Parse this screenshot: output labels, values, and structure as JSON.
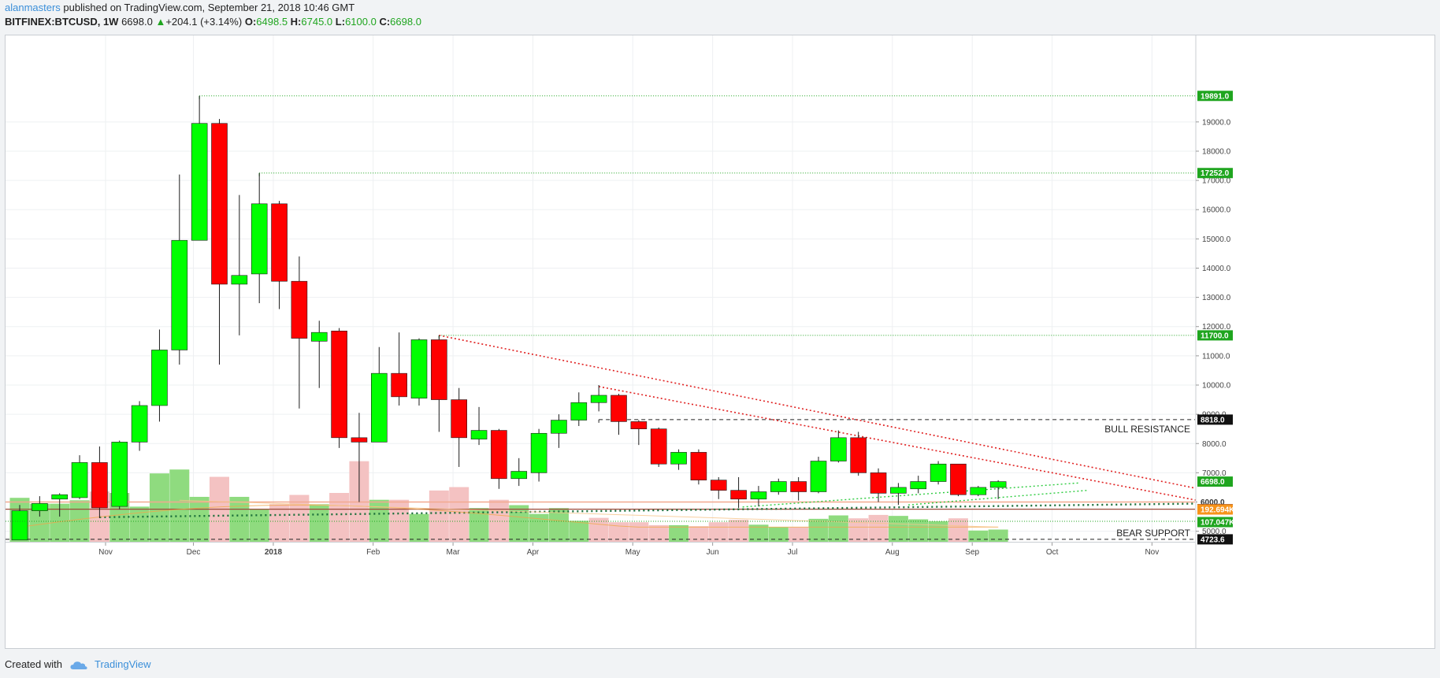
{
  "header": {
    "author": "alanmasters",
    "published_text": " published on TradingView.com, September 21, 2018 10:46 GMT",
    "symbol": "BITFINEX:BTCUSD, 1W",
    "last": "6698.0",
    "arrow": "▲",
    "change": "+204.1 (+3.14%)",
    "o_label": "O:",
    "o_value": "6498.5",
    "h_label": "H:",
    "h_value": "6745.0",
    "l_label": "L:",
    "l_value": "6100.0",
    "c_label": "C:",
    "c_value": "6698.0"
  },
  "footer": {
    "created_with": "Created with",
    "brand": "TradingView"
  },
  "colors": {
    "up": "#00ff00",
    "down": "#ff0000",
    "vol_up": "#8fdb7f",
    "vol_down": "#f4c2c2",
    "level_green": "#1fa51f",
    "trend_red": "#e02020",
    "support_dark": "#1a6e3a",
    "ma_orange": "#f0a64b",
    "axis_text": "#444444"
  },
  "chart_data": {
    "type": "candlestick",
    "symbol": "BITFINEX:BTCUSD",
    "timeframe": "1W",
    "ylim": [
      4100,
      20500
    ],
    "y_ticks": [
      5000,
      6000,
      7000,
      8000,
      9000,
      10000,
      11000,
      12000,
      13000,
      14000,
      15000,
      16000,
      17000,
      18000,
      19000
    ],
    "y_tick_labels": [
      "5000.0",
      "6000.0",
      "7000.0",
      "8000.0",
      "9000.0",
      "10000.0",
      "11000.0",
      "12000.0",
      "13000.0",
      "14000.0",
      "15000.0",
      "16000.0",
      "17000.0",
      "18000.0",
      "19000.0"
    ],
    "x_labels": [
      {
        "label": "Nov",
        "week": 4.3
      },
      {
        "label": "Dec",
        "week": 8.7
      },
      {
        "label": "2018",
        "week": 12.7
      },
      {
        "label": "Feb",
        "week": 17.7
      },
      {
        "label": "Mar",
        "week": 21.7
      },
      {
        "label": "Apr",
        "week": 25.7
      },
      {
        "label": "May",
        "week": 30.7
      },
      {
        "label": "Jun",
        "week": 34.7
      },
      {
        "label": "Jul",
        "week": 38.7
      },
      {
        "label": "Aug",
        "week": 43.7
      },
      {
        "label": "Sep",
        "week": 47.7
      },
      {
        "label": "Oct",
        "week": 51.7
      },
      {
        "label": "Nov",
        "week": 56.7
      }
    ],
    "candles": [
      {
        "o": 4700,
        "h": 5900,
        "l": 4700,
        "c": 5700
      },
      {
        "o": 5700,
        "h": 6200,
        "l": 5500,
        "c": 5950
      },
      {
        "o": 6100,
        "h": 6300,
        "l": 5500,
        "c": 6250
      },
      {
        "o": 6150,
        "h": 7600,
        "l": 6100,
        "c": 7350
      },
      {
        "o": 7350,
        "h": 7900,
        "l": 5450,
        "c": 5800
      },
      {
        "o": 5850,
        "h": 8100,
        "l": 5750,
        "c": 8050
      },
      {
        "o": 8050,
        "h": 9450,
        "l": 7750,
        "c": 9300
      },
      {
        "o": 9300,
        "h": 11900,
        "l": 8750,
        "c": 11200
      },
      {
        "o": 11200,
        "h": 17200,
        "l": 10700,
        "c": 14950
      },
      {
        "o": 14950,
        "h": 19891,
        "l": 14950,
        "c": 18950
      },
      {
        "o": 18950,
        "h": 19100,
        "l": 10700,
        "c": 13450
      },
      {
        "o": 13450,
        "h": 16500,
        "l": 11700,
        "c": 13750
      },
      {
        "o": 13800,
        "h": 17252,
        "l": 12800,
        "c": 16200
      },
      {
        "o": 16200,
        "h": 16300,
        "l": 12600,
        "c": 13550
      },
      {
        "o": 13550,
        "h": 14400,
        "l": 9200,
        "c": 11600
      },
      {
        "o": 11500,
        "h": 12200,
        "l": 9900,
        "c": 11800
      },
      {
        "o": 11850,
        "h": 11950,
        "l": 7850,
        "c": 8200
      },
      {
        "o": 8200,
        "h": 9050,
        "l": 6000,
        "c": 8050
      },
      {
        "o": 8050,
        "h": 11300,
        "l": 8050,
        "c": 10400
      },
      {
        "o": 10400,
        "h": 11800,
        "l": 9300,
        "c": 9600
      },
      {
        "o": 9550,
        "h": 11600,
        "l": 9300,
        "c": 11550
      },
      {
        "o": 11550,
        "h": 11700,
        "l": 8400,
        "c": 9500
      },
      {
        "o": 9500,
        "h": 9900,
        "l": 7200,
        "c": 8200
      },
      {
        "o": 8150,
        "h": 9250,
        "l": 7950,
        "c": 8450
      },
      {
        "o": 8450,
        "h": 8500,
        "l": 6450,
        "c": 6800
      },
      {
        "o": 6800,
        "h": 7500,
        "l": 6550,
        "c": 7050
      },
      {
        "o": 7000,
        "h": 8500,
        "l": 6700,
        "c": 8350
      },
      {
        "o": 8350,
        "h": 9000,
        "l": 7850,
        "c": 8800
      },
      {
        "o": 8800,
        "h": 9750,
        "l": 8600,
        "c": 9400
      },
      {
        "o": 9400,
        "h": 10000,
        "l": 9100,
        "c": 9650
      },
      {
        "o": 9650,
        "h": 9700,
        "l": 8300,
        "c": 8750
      },
      {
        "o": 8750,
        "h": 8800,
        "l": 7950,
        "c": 8500
      },
      {
        "o": 8500,
        "h": 8550,
        "l": 7200,
        "c": 7300
      },
      {
        "o": 7300,
        "h": 7800,
        "l": 7100,
        "c": 7700
      },
      {
        "o": 7700,
        "h": 7800,
        "l": 6600,
        "c": 6750
      },
      {
        "o": 6750,
        "h": 6850,
        "l": 6100,
        "c": 6400
      },
      {
        "o": 6400,
        "h": 6850,
        "l": 5800,
        "c": 6100
      },
      {
        "o": 6100,
        "h": 6550,
        "l": 5850,
        "c": 6350
      },
      {
        "o": 6350,
        "h": 6800,
        "l": 6250,
        "c": 6700
      },
      {
        "o": 6700,
        "h": 6850,
        "l": 6050,
        "c": 6350
      },
      {
        "o": 6350,
        "h": 7550,
        "l": 6300,
        "c": 7400
      },
      {
        "o": 7400,
        "h": 8450,
        "l": 7350,
        "c": 8200
      },
      {
        "o": 8200,
        "h": 8400,
        "l": 6900,
        "c": 7000
      },
      {
        "o": 7000,
        "h": 7150,
        "l": 6000,
        "c": 6300
      },
      {
        "o": 6300,
        "h": 6650,
        "l": 5900,
        "c": 6500
      },
      {
        "o": 6450,
        "h": 6900,
        "l": 6300,
        "c": 6700
      },
      {
        "o": 6700,
        "h": 7400,
        "l": 6600,
        "c": 7300
      },
      {
        "o": 7300,
        "h": 7300,
        "l": 6200,
        "c": 6250
      },
      {
        "o": 6250,
        "h": 6550,
        "l": 6200,
        "c": 6500
      },
      {
        "o": 6498.5,
        "h": 6745,
        "l": 6100,
        "c": 6698
      }
    ],
    "volume_up": [
      0.9,
      0.78,
      0.78,
      0.85,
      0,
      1.0,
      0.72,
      1.4,
      1.48,
      0.92,
      0,
      0.92,
      0.67,
      0,
      0,
      0.77,
      0,
      0,
      0.86,
      0,
      0.57,
      0,
      0,
      0.69,
      0,
      0.75,
      0.57,
      0.69,
      0.43,
      0,
      0,
      0,
      0,
      0.34,
      0,
      0,
      0,
      0.35,
      0.3,
      0,
      0.47,
      0.54,
      0,
      0,
      0.53,
      0.46,
      0.42,
      0,
      0.23,
      0.25
    ],
    "volume_down": [
      0,
      0,
      0,
      0,
      1.03,
      0,
      0,
      0,
      0,
      0,
      1.33,
      0,
      0,
      0.77,
      0.96,
      0,
      1.0,
      1.65,
      0,
      0.86,
      0,
      1.05,
      1.12,
      0,
      0.86,
      0,
      0,
      0,
      0,
      0.49,
      0.4,
      0.4,
      0.34,
      0,
      0.32,
      0.4,
      0.45,
      0,
      0,
      0.3,
      0,
      0,
      0.48,
      0.55,
      0,
      0,
      0,
      0.48,
      0,
      0
    ],
    "levels": [
      {
        "price": 19891,
        "label": "19891.0",
        "from_week": 9,
        "style": "green-dotted"
      },
      {
        "price": 17252,
        "label": "17252.0",
        "from_week": 12,
        "style": "green-dotted"
      },
      {
        "price": 11700,
        "label": "11700.0",
        "from_week": 21,
        "style": "green-dotted"
      },
      {
        "price": 8818,
        "label": "8818.0",
        "from_week": 29,
        "style": "black-dashed",
        "name": "BULL RESISTANCE"
      },
      {
        "price": 4723.6,
        "label": "4723.6",
        "from_week": 0,
        "style": "black-dashed",
        "name": "BEAR SUPPORT"
      },
      {
        "price": 6000,
        "label": "6000.0",
        "from_week": 0,
        "style": "salmon-solid"
      },
      {
        "price": 5755,
        "label": "5755.0",
        "from_week": 0,
        "style": "brown-solid"
      }
    ],
    "current_price": {
      "price": 6698,
      "label": "6698.0"
    },
    "volume_labels": [
      {
        "label": "192.694K",
        "color": "#f7931a"
      },
      {
        "label": "107.047K",
        "color": "#1fa51f"
      }
    ],
    "trendlines": [
      {
        "from": [
          21,
          11700
        ],
        "to": [
          59.4,
          6400
        ],
        "style": "red-dotted"
      },
      {
        "from": [
          29,
          9950
        ],
        "to": [
          59.4,
          6000
        ],
        "style": "red-dotted"
      },
      {
        "from": [
          4,
          5480
        ],
        "to": [
          59.4,
          5950
        ],
        "style": "darkgreen-dotted"
      },
      {
        "from": [
          36.2,
          5830
        ],
        "to": [
          53,
          6650
        ],
        "style": "green-dotted"
      },
      {
        "from": [
          44.5,
          5900
        ],
        "to": [
          53.5,
          6400
        ],
        "style": "green-dotted"
      }
    ]
  }
}
